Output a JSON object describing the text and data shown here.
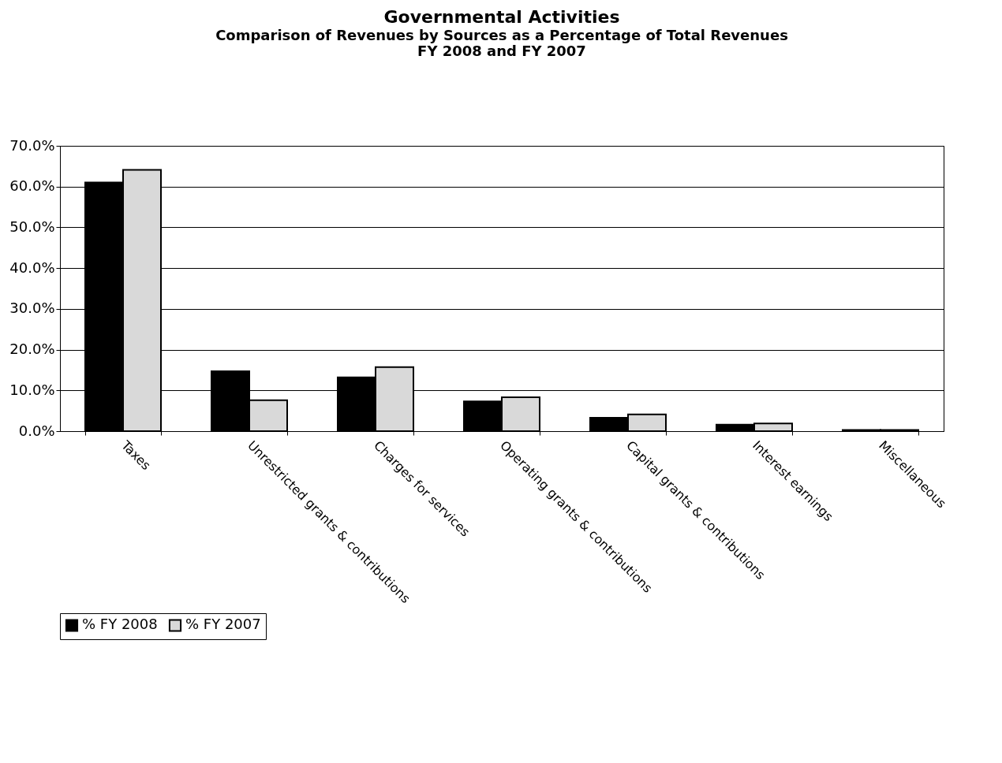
{
  "chart_data": {
    "type": "bar",
    "title": "Governmental Activities",
    "subtitle": "Comparison of Revenues by Sources as a Percentage of Total Revenues\nFY 2008 and FY 2007",
    "categories": [
      "Taxes",
      "Unrestricted grants & contributions",
      "Charges for services",
      "Operating grants & contributions",
      "Capital grants & contributions",
      "Interest earnings",
      "Miscellaneous"
    ],
    "series": [
      {
        "name": "% FY 2008",
        "color": "#000000",
        "values": [
          61.0,
          14.7,
          13.2,
          7.3,
          3.3,
          1.6,
          0.3
        ]
      },
      {
        "name": "% FY 2007",
        "color": "#d9d9d9",
        "values": [
          64.1,
          7.6,
          15.7,
          8.3,
          4.1,
          1.9,
          0.3
        ]
      }
    ],
    "ylim": [
      0,
      70
    ],
    "yticks": [
      {
        "value": 0,
        "label": "0.0%"
      },
      {
        "value": 10,
        "label": "10.0%"
      },
      {
        "value": 20,
        "label": "20.0%"
      },
      {
        "value": 30,
        "label": "30.0%"
      },
      {
        "value": 40,
        "label": "40.0%"
      },
      {
        "value": 50,
        "label": "50.0%"
      },
      {
        "value": 60,
        "label": "60.0%"
      },
      {
        "value": 70,
        "label": "70.0%"
      }
    ],
    "grid": "y",
    "legend": "bottom"
  }
}
